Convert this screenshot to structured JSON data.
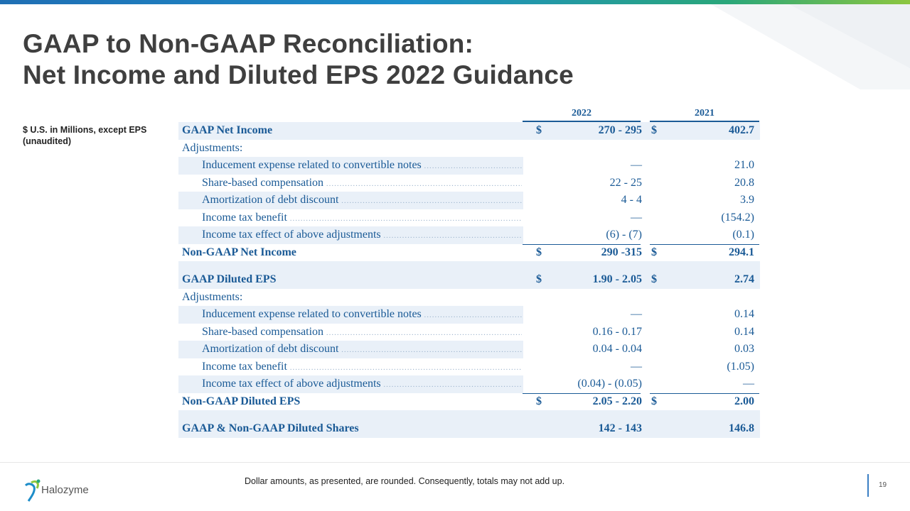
{
  "title_line1": "GAAP to Non-GAAP Reconciliation:",
  "title_line2": "Net Income and Diluted EPS 2022 Guidance",
  "side_note": "$ U.S. in Millions, except EPS (unaudited)",
  "table": {
    "year1": "2022",
    "year2": "2021",
    "currency_symbol": "$",
    "net_income": {
      "gaap_label": "GAAP Net Income",
      "gaap_2022": "270 - 295",
      "gaap_2021": "402.7",
      "adjustments_label": "Adjustments:",
      "adjustments": [
        {
          "label": "Inducement expense related to convertible notes",
          "v2022": "—",
          "v2021": "21.0"
        },
        {
          "label": "Share-based compensation",
          "v2022": "22 - 25",
          "v2021": "20.8"
        },
        {
          "label": "Amortization of debt discount",
          "v2022": "4 - 4",
          "v2021": "3.9"
        },
        {
          "label": "Income tax benefit",
          "v2022": "—",
          "v2021": "(154.2)"
        },
        {
          "label": "Income tax effect of above adjustments",
          "v2022": "(6) - (7)",
          "v2021": "(0.1)"
        }
      ],
      "nongaap_label": "Non-GAAP Net Income",
      "nongaap_2022": "290 -315",
      "nongaap_2021": "294.1"
    },
    "eps": {
      "gaap_label": "GAAP Diluted EPS",
      "gaap_2022": "1.90 - 2.05",
      "gaap_2021": "2.74",
      "adjustments_label": "Adjustments:",
      "adjustments": [
        {
          "label": "Inducement expense related to convertible notes",
          "v2022": "—",
          "v2021": "0.14"
        },
        {
          "label": "Share-based compensation",
          "v2022": "0.16 - 0.17",
          "v2021": "0.14"
        },
        {
          "label": "Amortization of debt discount",
          "v2022": "0.04 - 0.04",
          "v2021": "0.03"
        },
        {
          "label": "Income tax benefit",
          "v2022": "—",
          "v2021": "(1.05)"
        },
        {
          "label": "Income tax effect of above adjustments",
          "v2022": "(0.04) - (0.05)",
          "v2021": "—"
        }
      ],
      "nongaap_label": "Non-GAAP Diluted EPS",
      "nongaap_2022": "2.05 - 2.20",
      "nongaap_2021": "2.00"
    },
    "shares": {
      "label": "GAAP & Non-GAAP Diluted Shares",
      "v2022": "142 - 143",
      "v2021": "146.8"
    }
  },
  "footnote": "Dollar amounts, as presented, are rounded. Consequently, totals may not add up.",
  "logo_text": "Halozyme",
  "page_number": "19",
  "colors": {
    "accent_blue": "#1a5a96",
    "row_shade": "#e9f0f8",
    "title": "#3f3f3f"
  }
}
